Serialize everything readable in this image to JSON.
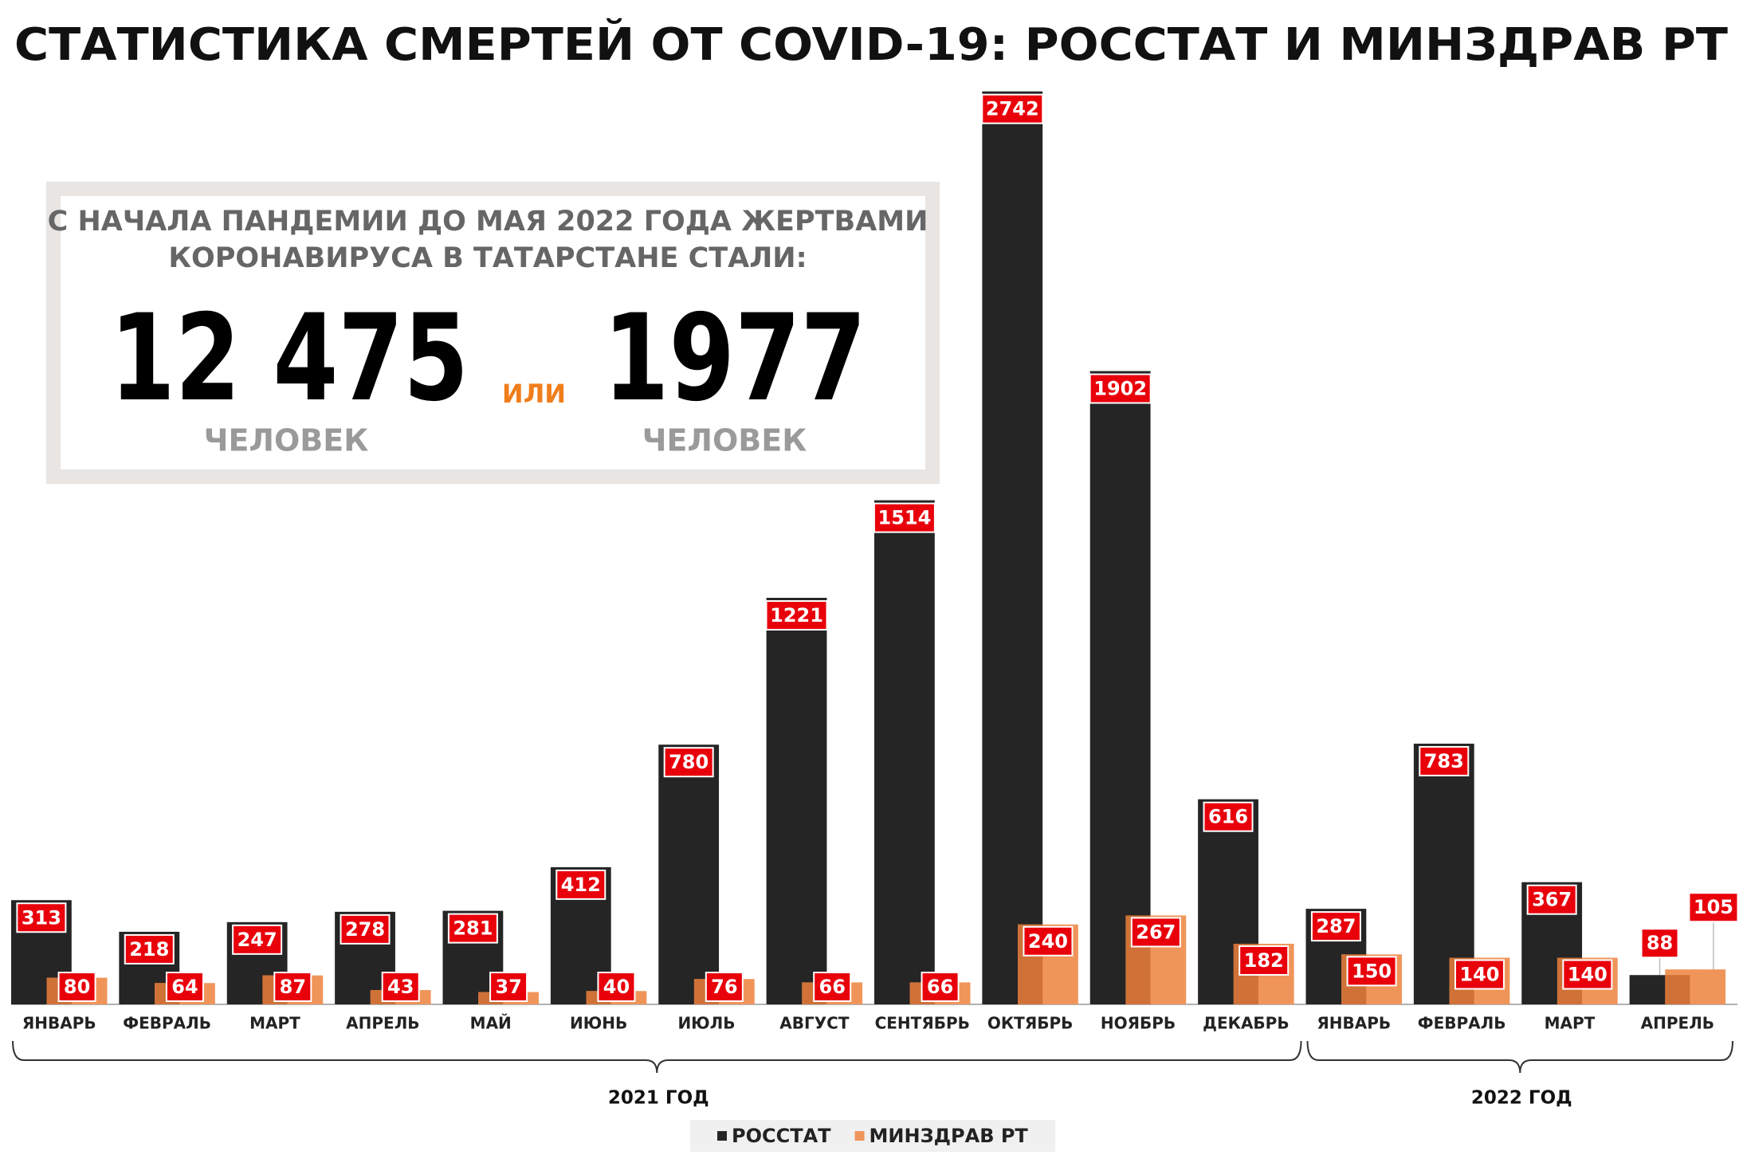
{
  "chart_data": {
    "type": "bar",
    "title": "СТАТИСТИКА СМЕРТЕЙ ОТ COVID-19: РОССТАТ И МИНЗДРАВ РТ",
    "groups": [
      {
        "label": "2021 ГОД",
        "categories": [
          "ЯНВАРЬ",
          "ФЕВРАЛЬ",
          "МАРТ",
          "АПРЕЛЬ",
          "МАЙ",
          "ИЮНЬ",
          "ИЮЛЬ",
          "АВГУСТ",
          "СЕНТЯБРЬ",
          "ОКТЯБРЬ",
          "НОЯБРЬ",
          "ДЕКАБРЬ"
        ]
      },
      {
        "label": "2022 ГОД",
        "categories": [
          "ЯНВАРЬ",
          "ФЕВРАЛЬ",
          "МАРТ",
          "АПРЕЛЬ"
        ]
      }
    ],
    "series": [
      {
        "name": "РОССТАТ",
        "color": "#252525",
        "values": [
          313,
          218,
          247,
          278,
          281,
          412,
          780,
          1221,
          1514,
          2742,
          1902,
          616,
          287,
          783,
          367,
          88
        ]
      },
      {
        "name": "МИНЗДРАВ РТ",
        "color": "#f0955a",
        "values": [
          80,
          64,
          87,
          43,
          37,
          40,
          76,
          66,
          66,
          240,
          267,
          182,
          150,
          140,
          140,
          105
        ]
      }
    ],
    "label_color": "#e8000b"
  },
  "info_box": {
    "lines": [
      "С НАЧАЛА ПАНДЕМИИ ДО МАЯ 2022 ГОДА ЖЕРТВАМИ",
      "КОРОНАВИРУСА В ТАТАРСТАНЕ СТАЛИ:"
    ],
    "totals": [
      {
        "number": "12 475",
        "unit": "ЧЕЛОВЕК"
      },
      {
        "number": "1977",
        "unit": "ЧЕЛОВЕК"
      }
    ],
    "connector": "ИЛИ"
  }
}
